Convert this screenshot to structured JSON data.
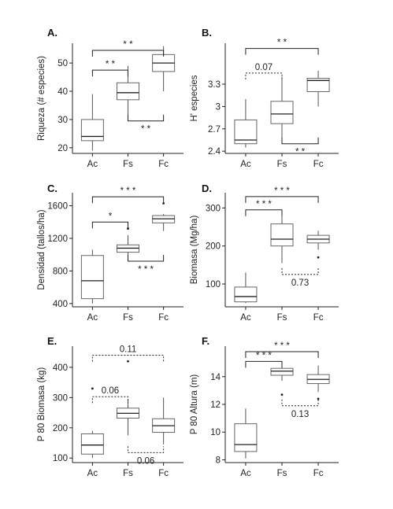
{
  "chart_data": [
    {
      "type": "box",
      "panel_label": "A.",
      "ylabel": "Riqueza (# especies)",
      "categories": [
        "Ac",
        "Fs",
        "Fc"
      ],
      "yticks": [
        20,
        30,
        40,
        50
      ],
      "ylim": [
        18,
        57
      ],
      "boxes": [
        {
          "category": "Ac",
          "whisker_low": 19,
          "q1": 22.5,
          "median": 24,
          "q3": 30,
          "whisker_high": 39,
          "outliers": []
        },
        {
          "category": "Fs",
          "whisker_low": 31,
          "q1": 37,
          "median": 39.5,
          "q3": 43,
          "whisker_high": 49,
          "outliers": []
        },
        {
          "category": "Fc",
          "whisker_low": 40,
          "q1": 47,
          "median": 50,
          "q3": 53,
          "whisker_high": 56,
          "outliers": []
        }
      ],
      "comparisons": [
        {
          "from": "Ac",
          "to": "Fc",
          "at": 54.5,
          "side": "above",
          "label": "* *",
          "dashed": false
        },
        {
          "from": "Ac",
          "to": "Fs",
          "at": 47.5,
          "side": "above",
          "label": "* *",
          "dashed": false
        },
        {
          "from": "Fs",
          "to": "Fc",
          "at": 29.5,
          "side": "below",
          "label": "* *",
          "dashed": false
        }
      ]
    },
    {
      "type": "box",
      "panel_label": "B.",
      "ylabel": "H' especies",
      "categories": [
        "Ac",
        "Fs",
        "Fc"
      ],
      "yticks": [
        2.4,
        2.7,
        3.0,
        3.3
      ],
      "ylim": [
        2.37,
        3.85
      ],
      "boxes": [
        {
          "category": "Ac",
          "whisker_low": 2.45,
          "q1": 2.5,
          "median": 2.55,
          "q3": 2.82,
          "whisker_high": 3.1,
          "outliers": []
        },
        {
          "category": "Fs",
          "whisker_low": 2.55,
          "q1": 2.77,
          "median": 2.9,
          "q3": 3.07,
          "whisker_high": 3.4,
          "outliers": []
        },
        {
          "category": "Fc",
          "whisker_low": 3.0,
          "q1": 3.2,
          "median": 3.35,
          "q3": 3.38,
          "whisker_high": 3.48,
          "outliers": []
        }
      ],
      "comparisons": [
        {
          "from": "Ac",
          "to": "Fc",
          "at": 3.78,
          "side": "above",
          "label": "* *",
          "dashed": false
        },
        {
          "from": "Ac",
          "to": "Fs",
          "at": 3.45,
          "side": "above",
          "label": "0.07",
          "dashed": true
        },
        {
          "from": "Fs",
          "to": "Fc",
          "at": 2.5,
          "side": "below",
          "label": "* *",
          "dashed": false
        }
      ]
    },
    {
      "type": "box",
      "panel_label": "C.",
      "ylabel": "Densidad (tallos/ha)",
      "categories": [
        "Ac",
        "Fs",
        "Fc"
      ],
      "yticks": [
        400,
        800,
        1200,
        1600
      ],
      "ylim": [
        360,
        1760
      ],
      "boxes": [
        {
          "category": "Ac",
          "whisker_low": 400,
          "q1": 460,
          "median": 680,
          "q3": 990,
          "whisker_high": 1060,
          "outliers": []
        },
        {
          "category": "Fs",
          "whisker_low": 960,
          "q1": 1030,
          "median": 1080,
          "q3": 1120,
          "whisker_high": 1240,
          "outliers": [
            1320
          ]
        },
        {
          "category": "Fc",
          "whisker_low": 1290,
          "q1": 1390,
          "median": 1440,
          "q3": 1480,
          "whisker_high": 1500,
          "outliers": [
            1630
          ]
        }
      ],
      "comparisons": [
        {
          "from": "Ac",
          "to": "Fc",
          "at": 1710,
          "side": "above",
          "label": "* * *",
          "dashed": false
        },
        {
          "from": "Ac",
          "to": "Fs",
          "at": 1400,
          "side": "above",
          "label": "*",
          "dashed": false
        },
        {
          "from": "Fs",
          "to": "Fc",
          "at": 920,
          "side": "below",
          "label": "* * *",
          "dashed": false
        }
      ]
    },
    {
      "type": "box",
      "panel_label": "D.",
      "ylabel": "Biomasa (Mg/ha)",
      "categories": [
        "Ac",
        "Fs",
        "Fc"
      ],
      "yticks": [
        100,
        200,
        300
      ],
      "ylim": [
        40,
        340
      ],
      "boxes": [
        {
          "category": "Ac",
          "whisker_low": 50,
          "q1": 53,
          "median": 67,
          "q3": 92,
          "whisker_high": 130,
          "outliers": []
        },
        {
          "category": "Fs",
          "whisker_low": 155,
          "q1": 200,
          "median": 218,
          "q3": 258,
          "whisker_high": 295,
          "outliers": []
        },
        {
          "category": "Fc",
          "whisker_low": 190,
          "q1": 208,
          "median": 218,
          "q3": 228,
          "whisker_high": 240,
          "outliers": [
            170
          ]
        }
      ],
      "comparisons": [
        {
          "from": "Ac",
          "to": "Fc",
          "at": 330,
          "side": "above",
          "label": "* * *",
          "dashed": false
        },
        {
          "from": "Ac",
          "to": "Fs",
          "at": 295,
          "side": "above",
          "label": "* * *",
          "dashed": false
        },
        {
          "from": "Fs",
          "to": "Fc",
          "at": 125,
          "side": "below",
          "label": "0.73",
          "dashed": true
        }
      ]
    },
    {
      "type": "box",
      "panel_label": "E.",
      "ylabel": "P 80 Biomasa (kg)",
      "categories": [
        "Ac",
        "Fs",
        "Fc"
      ],
      "yticks": [
        100,
        200,
        300,
        400
      ],
      "ylim": [
        85,
        470
      ],
      "boxes": [
        {
          "category": "Ac",
          "whisker_low": 100,
          "q1": 113,
          "median": 143,
          "q3": 180,
          "whisker_high": 190,
          "outliers": [
            330
          ]
        },
        {
          "category": "Fs",
          "whisker_low": 175,
          "q1": 232,
          "median": 248,
          "q3": 265,
          "whisker_high": 295,
          "outliers": [
            420
          ]
        },
        {
          "category": "Fc",
          "whisker_low": 145,
          "q1": 185,
          "median": 207,
          "q3": 230,
          "whisker_high": 300,
          "outliers": []
        }
      ],
      "comparisons": [
        {
          "from": "Ac",
          "to": "Fc",
          "at": 440,
          "side": "above",
          "label": "0.11",
          "dashed": true
        },
        {
          "from": "Ac",
          "to": "Fs",
          "at": 303,
          "side": "above",
          "label": "0.06",
          "dashed": true
        },
        {
          "from": "Fs",
          "to": "Fc",
          "at": 118,
          "side": "below",
          "label": "0.06",
          "dashed": true
        }
      ]
    },
    {
      "type": "box",
      "panel_label": "F.",
      "ylabel": "P 80 Altura (m)",
      "categories": [
        "Ac",
        "Fs",
        "Fc"
      ],
      "yticks": [
        8,
        10,
        12,
        14
      ],
      "ylim": [
        7.8,
        16.2
      ],
      "boxes": [
        {
          "category": "Ac",
          "whisker_low": 8.1,
          "q1": 8.6,
          "median": 9.1,
          "q3": 10.6,
          "whisker_high": 11.7,
          "outliers": []
        },
        {
          "category": "Fs",
          "whisker_low": 13.7,
          "q1": 14.1,
          "median": 14.4,
          "q3": 14.6,
          "whisker_high": 14.8,
          "outliers": [
            12.7
          ]
        },
        {
          "category": "Fc",
          "whisker_low": 12.9,
          "q1": 13.5,
          "median": 13.8,
          "q3": 14.15,
          "whisker_high": 14.8,
          "outliers": [
            12.4
          ]
        }
      ],
      "comparisons": [
        {
          "from": "Ac",
          "to": "Fc",
          "at": 15.8,
          "side": "above",
          "label": "* * *",
          "dashed": false
        },
        {
          "from": "Ac",
          "to": "Fs",
          "at": 15.1,
          "side": "above",
          "label": "* * *",
          "dashed": false
        },
        {
          "from": "Fs",
          "to": "Fc",
          "at": 11.9,
          "side": "below",
          "label": "0.13",
          "dashed": true
        }
      ]
    }
  ]
}
